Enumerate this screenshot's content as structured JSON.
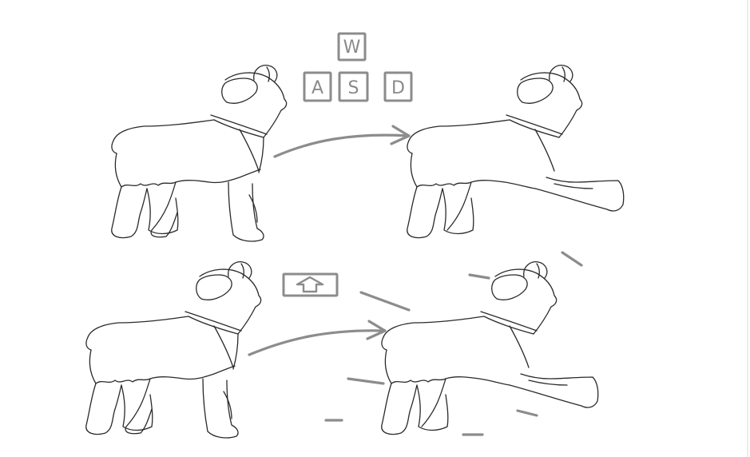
{
  "keys": {
    "w": "W",
    "a": "A",
    "s": "S",
    "d": "D",
    "up_arrow_icon": "up-arrow-icon"
  },
  "colors": {
    "sketch": "#2a2a2a",
    "annotation": "#8c8c8c",
    "background": "#ffffff"
  }
}
